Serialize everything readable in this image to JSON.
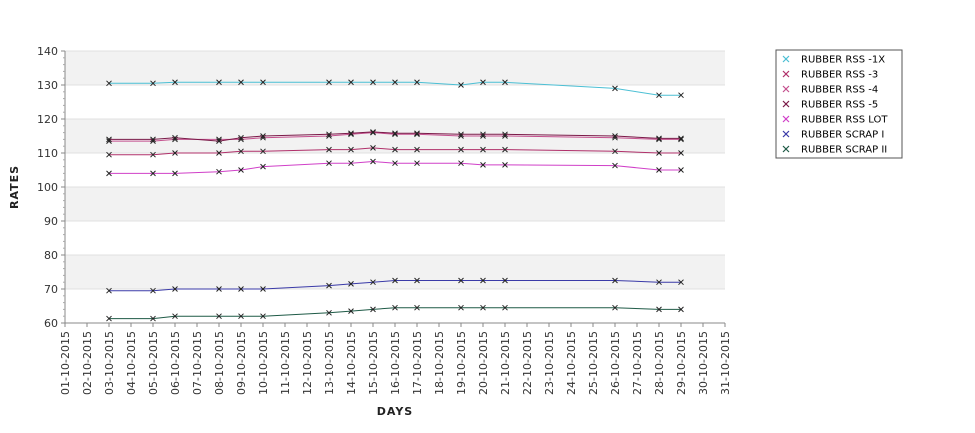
{
  "chart_data": {
    "type": "line",
    "xlabel": "DAYS",
    "ylabel": "RATES",
    "ylim": [
      60,
      140
    ],
    "yticks": [
      60,
      70,
      80,
      90,
      100,
      110,
      120,
      130,
      140
    ],
    "x_tick_labels": [
      "01-10-2015",
      "02-10-2015",
      "03-10-2015",
      "04-10-2015",
      "05-10-2015",
      "06-10-2015",
      "07-10-2015",
      "08-10-2015",
      "09-10-2015",
      "10-10-2015",
      "11-10-2015",
      "12-10-2015",
      "13-10-2015",
      "14-10-2015",
      "15-10-2015",
      "16-10-2015",
      "17-10-2015",
      "18-10-2015",
      "19-10-2015",
      "20-10-2015",
      "21-10-2015",
      "22-10-2015",
      "23-10-2015",
      "24-10-2015",
      "25-10-2015",
      "26-10-2015",
      "27-10-2015",
      "28-10-2015",
      "29-10-2015",
      "30-10-2015",
      "31-10-2015"
    ],
    "xlim": [
      "01-10-2015",
      "31-10-2015"
    ],
    "x": [
      "03-10-2015",
      "05-10-2015",
      "06-10-2015",
      "08-10-2015",
      "09-10-2015",
      "10-10-2015",
      "13-10-2015",
      "14-10-2015",
      "15-10-2015",
      "16-10-2015",
      "17-10-2015",
      "19-10-2015",
      "20-10-2015",
      "21-10-2015",
      "26-10-2015",
      "28-10-2015",
      "29-10-2015"
    ],
    "grid": "horizontal bands",
    "legend_position": "right",
    "series": [
      {
        "name": "RUBBER RSS -1X",
        "color": "#4bbfd4",
        "values": [
          130.5,
          130.5,
          130.8,
          130.8,
          130.8,
          130.8,
          130.8,
          130.8,
          130.8,
          130.8,
          130.8,
          130,
          130.8,
          130.8,
          129,
          127,
          127
        ]
      },
      {
        "name": "RUBBER RSS -3",
        "color": "#b0306a",
        "values": [
          109.5,
          109.5,
          110,
          110,
          110.5,
          110.5,
          111,
          111,
          111.5,
          111,
          111,
          111,
          111,
          111,
          110.5,
          110,
          110
        ]
      },
      {
        "name": "RUBBER RSS -4",
        "color": "#c4508e",
        "values": [
          113.5,
          113.5,
          114,
          114,
          114,
          114.5,
          115,
          115.5,
          116,
          115.5,
          115.5,
          115,
          115,
          115,
          114.5,
          114,
          114
        ]
      },
      {
        "name": "RUBBER RSS -5",
        "color": "#7a1a48",
        "values": [
          114,
          114,
          114.5,
          113.5,
          114.5,
          115,
          115.5,
          115.8,
          116.2,
          115.8,
          115.8,
          115.5,
          115.5,
          115.5,
          115,
          114.3,
          114.3
        ]
      },
      {
        "name": "RUBBER RSS LOT",
        "color": "#d040c8",
        "values": [
          104,
          104,
          104,
          104.5,
          105,
          106,
          107,
          107,
          107.5,
          107,
          107,
          107,
          106.5,
          106.5,
          106.3,
          105,
          105
        ]
      },
      {
        "name": "RUBBER SCRAP I",
        "color": "#3a3aa8",
        "values": [
          69.5,
          69.5,
          70,
          70,
          70,
          70,
          71,
          71.5,
          72,
          72.5,
          72.5,
          72.5,
          72.5,
          72.5,
          72.5,
          72,
          72
        ]
      },
      {
        "name": "RUBBER SCRAP II",
        "color": "#1e5a46",
        "values": [
          61.3,
          61.3,
          62,
          62,
          62,
          62,
          63,
          63.5,
          64,
          64.5,
          64.5,
          64.5,
          64.5,
          64.5,
          64.5,
          64,
          64
        ]
      }
    ]
  }
}
